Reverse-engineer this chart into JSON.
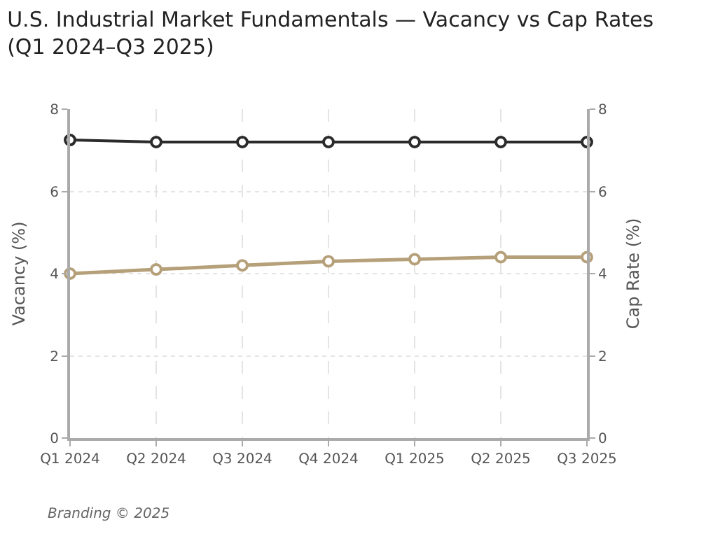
{
  "chart_data": {
    "type": "line",
    "title": "U.S. Industrial Market Fundamentals — Vacancy vs Cap Rates (Q1 2024–Q3 2025)",
    "ylabel": "Vacancy (%)",
    "y2label": "Cap Rate (%)",
    "categories": [
      "Q1 2024",
      "Q2 2024",
      "Q3 2024",
      "Q4 2024",
      "Q1 2025",
      "Q2 2025",
      "Q3 2025"
    ],
    "series": [
      {
        "color": "#2b2b2b",
        "values": [
          7.25,
          7.2,
          7.2,
          7.2,
          7.2,
          7.2,
          7.2
        ]
      },
      {
        "color": "#b5a07a",
        "axis": "y2",
        "values": [
          4.0,
          4.1,
          4.2,
          4.3,
          4.35,
          4.4,
          4.4
        ]
      }
    ],
    "ylim": [
      0,
      8
    ],
    "yticks": [
      0,
      2,
      4,
      6,
      8
    ],
    "y2lim": [
      0,
      8
    ],
    "y2ticks": [
      0,
      2,
      4,
      6,
      8
    ],
    "grid": true,
    "marker": "circle",
    "line_style": "solid",
    "annotations": [
      "Branding © 2025"
    ]
  }
}
